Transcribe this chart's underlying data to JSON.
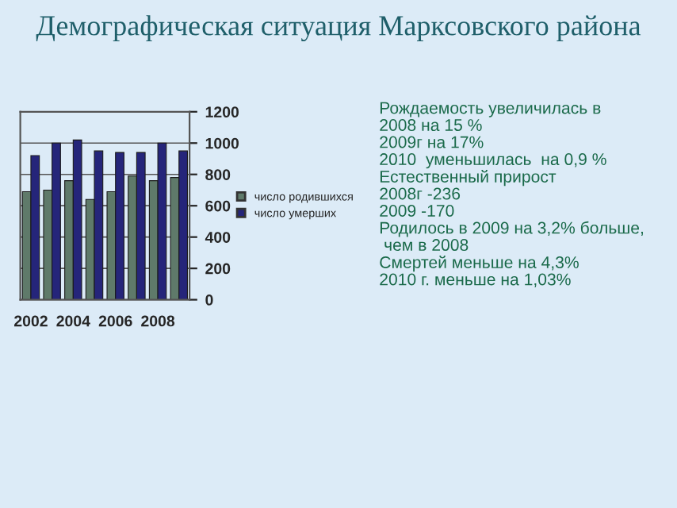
{
  "chart_data": {
    "type": "bar",
    "title": "Демографическая ситуация Марксовского района",
    "categories": [
      "2002",
      null,
      "2004",
      null,
      "2006",
      null,
      "2008",
      null
    ],
    "series": [
      {
        "name": "число родившихся",
        "color": "#5f7a6a",
        "values": [
          690,
          700,
          760,
          640,
          690,
          790,
          760,
          780
        ]
      },
      {
        "name": "число умерших",
        "color": "#25257a",
        "values": [
          920,
          1000,
          1020,
          950,
          940,
          940,
          1000,
          950
        ]
      }
    ],
    "ylim": [
      0,
      1200
    ],
    "yticks": [
      0,
      200,
      400,
      600,
      800,
      1000,
      1200
    ],
    "grid": "y",
    "legend": "right",
    "annotations": [
      "Рождаемость увеличилась в\n2008 на 15 %\n2009г на 17%\n2010  уменьшилась  на 0,9 %\nЕстественный прирост\n2008г -236\n2009 -170\nРодилось в 2009 на 3,2% больше,\n чем в 2008\nСмертей меньше на 4,3%\n2010 г. меньше на 1,03%"
    ]
  }
}
